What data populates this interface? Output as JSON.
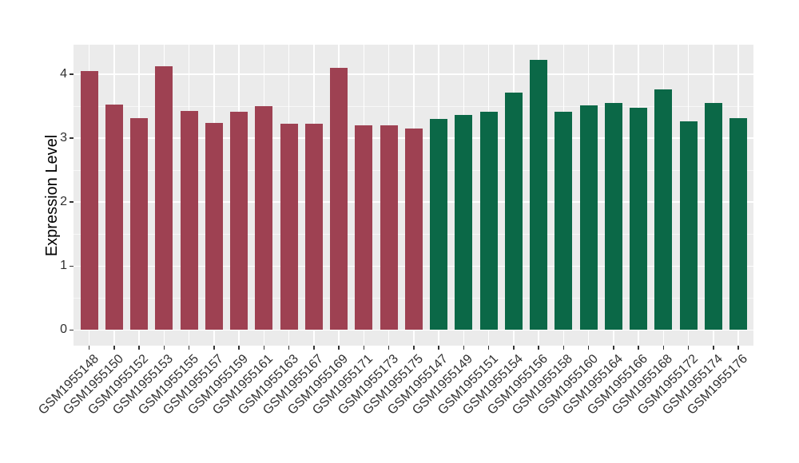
{
  "chart_data": {
    "type": "bar",
    "title": "",
    "xlabel": "",
    "ylabel": "Expression Level",
    "ylim": [
      0,
      4.46
    ],
    "yticks": [
      0,
      1,
      2,
      3,
      4
    ],
    "yminorticks": [
      0.5,
      1.5,
      2.5,
      3.5
    ],
    "grid": "white major and minor horizontal lines plus white vertical lines at each category center, drawn on gray panel behind bars",
    "legend_position": "none",
    "x_tick_rotation_deg": 45,
    "series": [
      {
        "name": "group-maroon",
        "color": "#9E4152",
        "categories": [
          "GSM1955148",
          "GSM1955150",
          "GSM1955152",
          "GSM1955153",
          "GSM1955155",
          "GSM1955157",
          "GSM1955159",
          "GSM1955161",
          "GSM1955163",
          "GSM1955167",
          "GSM1955169",
          "GSM1955171",
          "GSM1955173",
          "GSM1955175"
        ],
        "values": [
          4.05,
          3.52,
          3.31,
          4.13,
          3.42,
          3.24,
          3.41,
          3.5,
          3.22,
          3.22,
          4.1,
          3.2,
          3.2,
          3.15
        ]
      },
      {
        "name": "group-green",
        "color": "#0B6847",
        "categories": [
          "GSM1955147",
          "GSM1955149",
          "GSM1955151",
          "GSM1955154",
          "GSM1955156",
          "GSM1955158",
          "GSM1955160",
          "GSM1955164",
          "GSM1955166",
          "GSM1955168",
          "GSM1955172",
          "GSM1955174",
          "GSM1955176"
        ],
        "values": [
          3.3,
          3.36,
          3.41,
          3.71,
          4.23,
          3.41,
          3.51,
          3.55,
          3.47,
          3.76,
          3.26,
          3.55,
          3.31
        ]
      }
    ],
    "colors": {
      "panel_background": "#EBEBEB",
      "grid": "#FFFFFF",
      "figure_background": "#FFFFFF",
      "tick_text": "#303030",
      "axis_title_text": "#000000"
    }
  }
}
